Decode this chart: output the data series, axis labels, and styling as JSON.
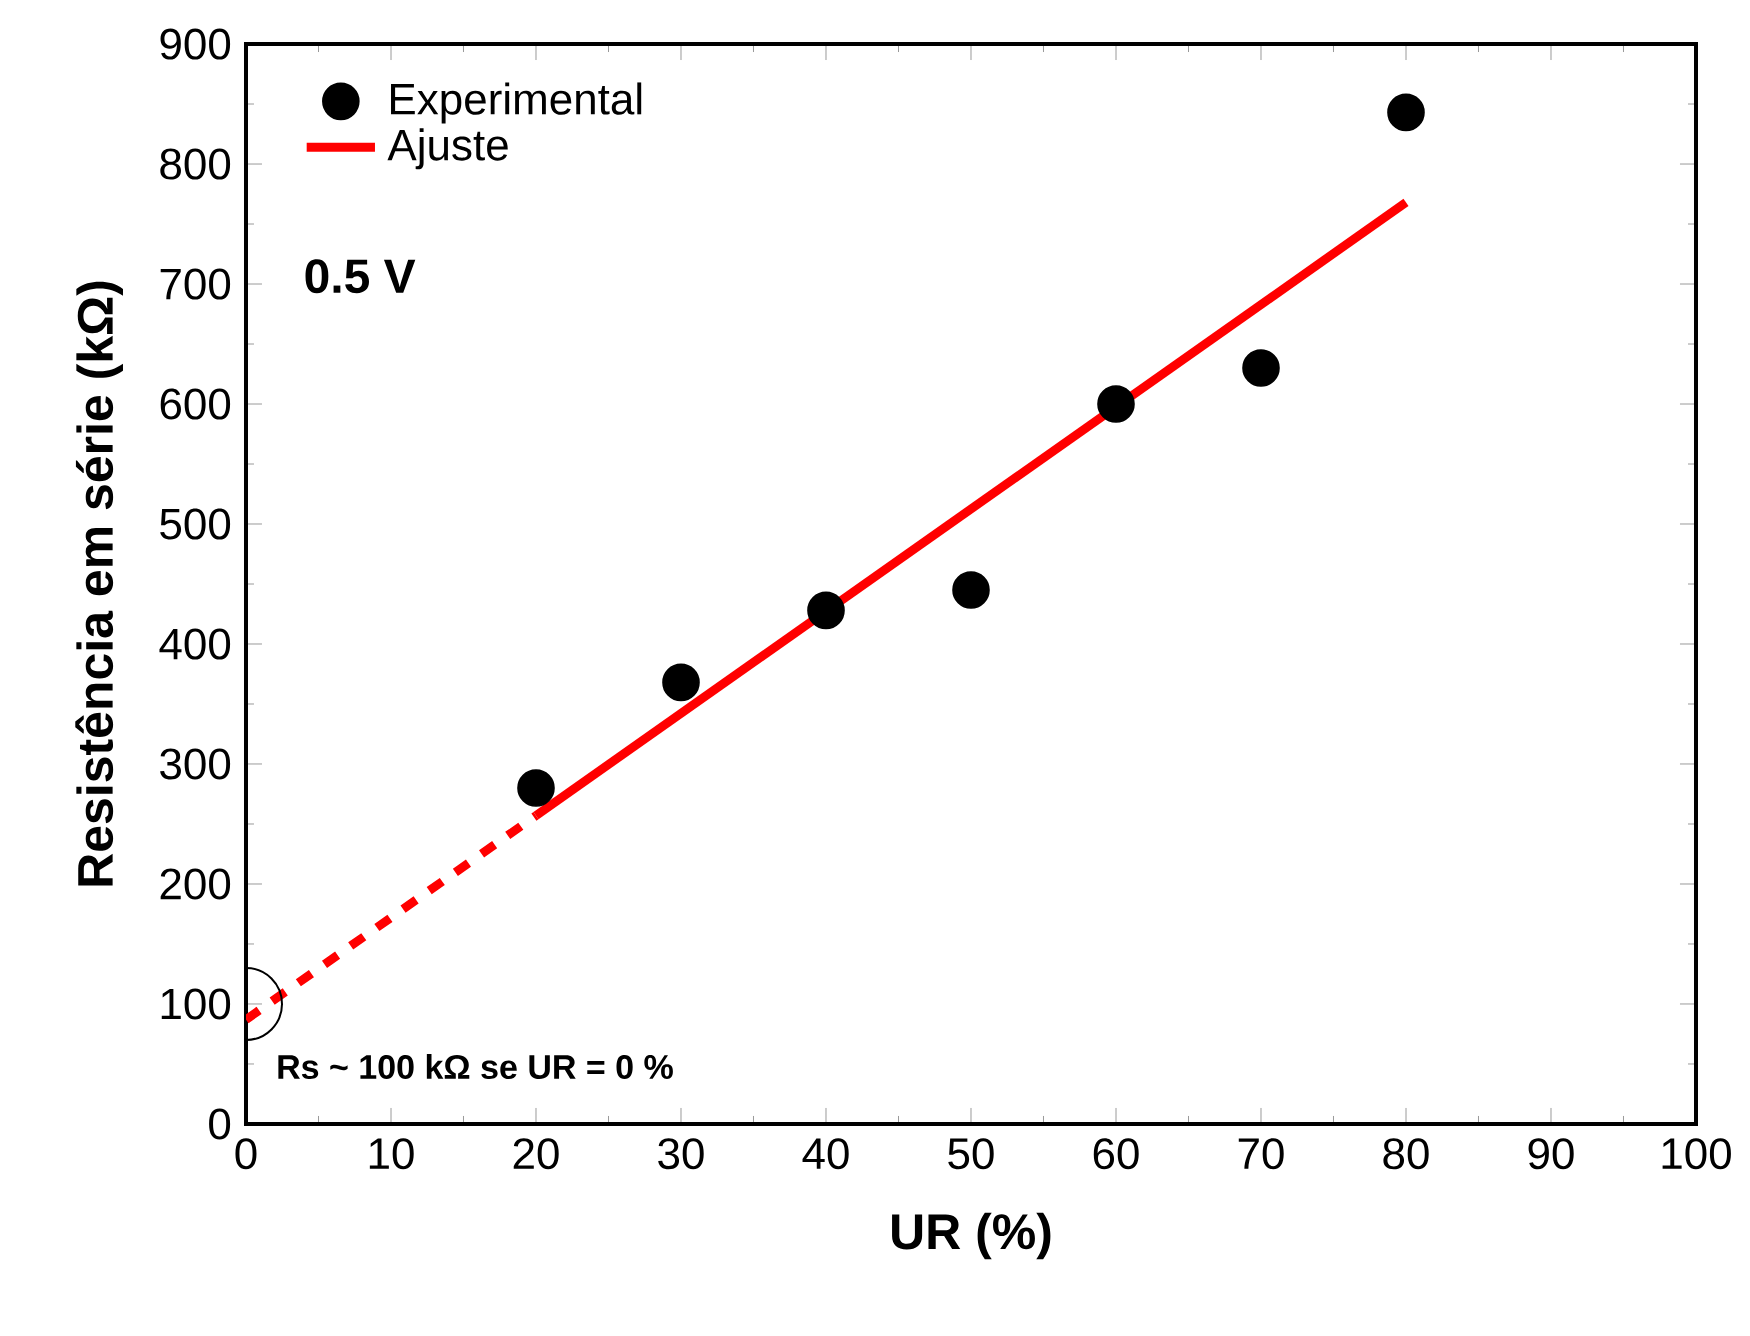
{
  "chart_data": {
    "type": "scatter",
    "xlabel": "UR (%)",
    "ylabel": "Resistência em série (kΩ)",
    "series": [
      {
        "name": "Experimental",
        "color": "#000000",
        "marker": "circle",
        "x": [
          20,
          30,
          40,
          50,
          60,
          70,
          80
        ],
        "values": [
          280,
          368,
          428,
          445,
          600,
          630,
          843
        ]
      },
      {
        "type": "line",
        "color": "#ff0000",
        "line_style": "dotted",
        "marker": "none",
        "x": [
          0,
          20
        ],
        "values": [
          87,
          257
        ]
      },
      {
        "name": "Ajuste",
        "type": "line",
        "color": "#ff0000",
        "line_style": "solid",
        "marker": "none",
        "x": [
          20,
          80
        ],
        "values": [
          257,
          768
        ]
      }
    ],
    "xlim": [
      0,
      100
    ],
    "ylim": [
      0,
      900
    ],
    "xticks": [
      0,
      10,
      20,
      30,
      40,
      50,
      60,
      70,
      80,
      90,
      100
    ],
    "yticks": [
      0,
      100,
      200,
      300,
      400,
      500,
      600,
      700,
      800,
      900
    ],
    "legend": "top left",
    "grid": false,
    "annotations": [
      "0.5 V",
      {
        "text": "Rs ~ 100 kΩ se UR = 0 %",
        "x": 0,
        "y": 100
      }
    ]
  }
}
